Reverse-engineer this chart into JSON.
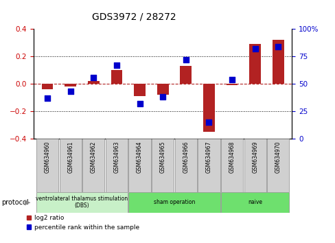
{
  "title": "GDS3972 / 28272",
  "samples": [
    "GSM634960",
    "GSM634961",
    "GSM634962",
    "GSM634963",
    "GSM634964",
    "GSM634965",
    "GSM634966",
    "GSM634967",
    "GSM634968",
    "GSM634969",
    "GSM634970"
  ],
  "log2_ratio": [
    -0.04,
    -0.02,
    0.02,
    0.1,
    -0.09,
    -0.08,
    0.13,
    -0.35,
    -0.01,
    0.29,
    0.32
  ],
  "percentile_rank": [
    37,
    43,
    56,
    67,
    32,
    38,
    72,
    15,
    54,
    82,
    84
  ],
  "ylim_left": [
    -0.4,
    0.4
  ],
  "ylim_right": [
    0,
    100
  ],
  "yticks_left": [
    -0.4,
    -0.2,
    0.0,
    0.2,
    0.4
  ],
  "yticks_right": [
    0,
    25,
    50,
    75,
    100
  ],
  "dotted_lines": [
    -0.2,
    0.2
  ],
  "bar_color": "#b22222",
  "dot_color": "#0000cc",
  "bar_width": 0.5,
  "dot_size": 30,
  "groups": [
    {
      "label": "ventrolateral thalamus stimulation\n(DBS)",
      "start": 0,
      "end": 3,
      "color": "#c8f0c8"
    },
    {
      "label": "sham operation",
      "start": 4,
      "end": 7,
      "color": "#6ee06e"
    },
    {
      "label": "naive",
      "start": 8,
      "end": 10,
      "color": "#6ee06e"
    }
  ],
  "protocol_label": "protocol",
  "legend_items": [
    {
      "color": "#b22222",
      "label": "log2 ratio"
    },
    {
      "color": "#0000cc",
      "label": "percentile rank within the sample"
    }
  ],
  "bg_color": "#ffffff",
  "tick_label_color_left": "#cc0000",
  "tick_label_color_right": "#0000cc",
  "sample_box_color": "#d0d0d0",
  "title_fontsize": 10
}
